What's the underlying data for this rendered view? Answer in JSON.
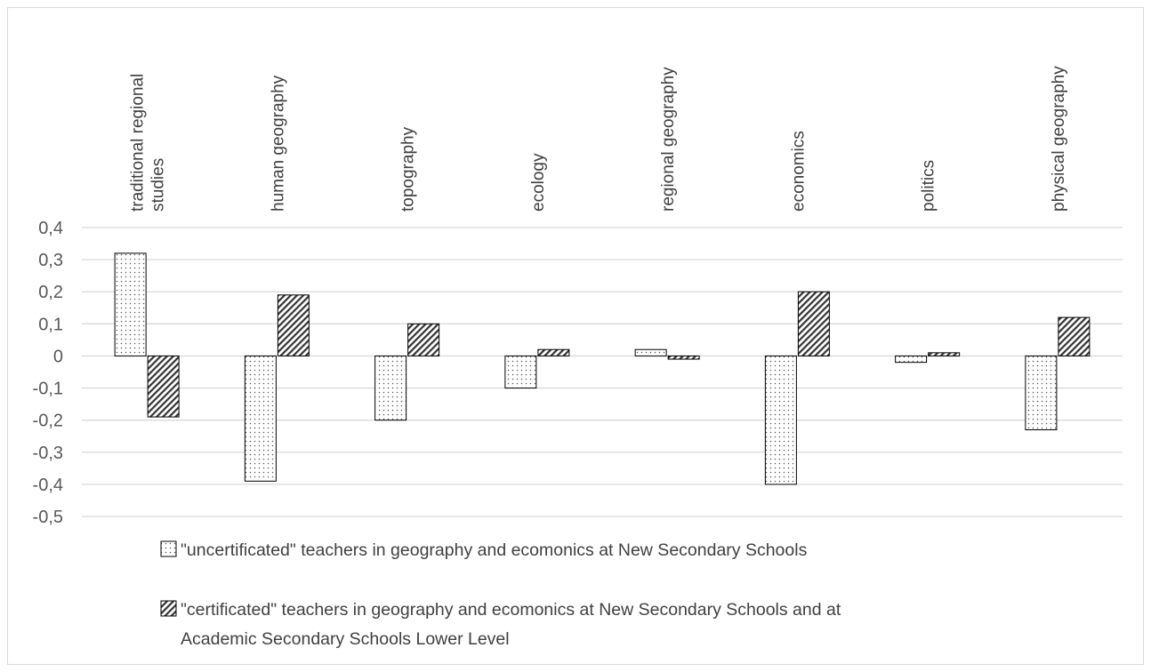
{
  "chart_data": {
    "type": "bar",
    "categories": [
      "traditional regional studies",
      "human geography",
      "topography",
      "ecology",
      "regional geography",
      "economics",
      "politics",
      "physical geography"
    ],
    "category_label_lines": [
      [
        "traditional regional",
        "studies"
      ],
      [
        "human geography"
      ],
      [
        "topography"
      ],
      [
        "ecology"
      ],
      [
        "regional geography"
      ],
      [
        "economics"
      ],
      [
        "politics"
      ],
      [
        "physical geography"
      ]
    ],
    "series": [
      {
        "name": "\"uncertificated\" teachers in geography and ecomonics at New Secondary Schools",
        "pattern": "dots",
        "values": [
          0.32,
          -0.39,
          -0.2,
          -0.1,
          0.02,
          -0.4,
          -0.02,
          -0.23
        ]
      },
      {
        "name": "\"certificated\" teachers in geography and ecomonics at New Secondary Schools and at Academic Secondary Schools Lower Level",
        "name_lines": [
          "\"certificated\" teachers in geography and ecomonics at New Secondary Schools and at",
          "Academic Secondary Schools Lower Level"
        ],
        "pattern": "hatch",
        "values": [
          -0.19,
          0.19,
          0.1,
          0.02,
          -0.01,
          0.2,
          0.01,
          0.12
        ]
      }
    ],
    "yticks": [
      "0,4",
      "0,3",
      "0,2",
      "0,1",
      "0",
      "-0,1",
      "-0,2",
      "-0,3",
      "-0,4",
      "-0,5"
    ],
    "ylim": [
      -0.5,
      0.4
    ],
    "grid": true,
    "legend_position": "bottom",
    "colors": {
      "grid": "#d9d9d9",
      "bar_stroke": "#000000",
      "text": "#404040"
    }
  }
}
